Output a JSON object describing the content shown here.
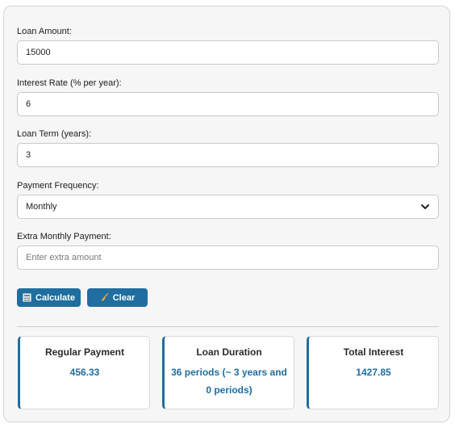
{
  "form": {
    "loan_amount": {
      "label": "Loan Amount:",
      "value": "15000"
    },
    "interest_rate": {
      "label": "Interest Rate (% per year):",
      "value": "6"
    },
    "loan_term": {
      "label": "Loan Term (years):",
      "value": "3"
    },
    "payment_frequency": {
      "label": "Payment Frequency:",
      "selected": "Monthly"
    },
    "extra_payment": {
      "label": "Extra Monthly Payment:",
      "value": "",
      "placeholder": "Enter extra amount"
    }
  },
  "buttons": {
    "calculate": {
      "label": "Calculate",
      "icon": "calculator-icon"
    },
    "clear": {
      "label": "Clear",
      "icon": "broom-icon"
    }
  },
  "results": {
    "regular_payment": {
      "title": "Regular Payment",
      "value": "456.33"
    },
    "loan_duration": {
      "title": "Loan Duration",
      "value": "36 periods (~ 3 years and 0 periods)"
    },
    "total_interest": {
      "title": "Total Interest",
      "value": "1427.85"
    }
  },
  "colors": {
    "accent": "#1f6e9f",
    "card_background": "#f6f6f6",
    "border": "#d4d4d4"
  }
}
